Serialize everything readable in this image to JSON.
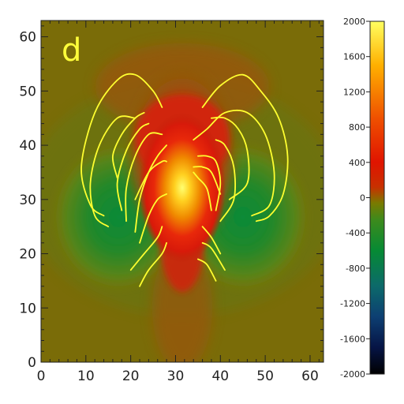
{
  "chart_data": {
    "type": "heatmap",
    "panel_label": "d",
    "title": "",
    "xlabel": "",
    "ylabel": "",
    "xlim": [
      0,
      63
    ],
    "ylim": [
      0,
      63
    ],
    "x_ticks": [
      0,
      10,
      20,
      30,
      40,
      50,
      60
    ],
    "y_ticks": [
      0,
      10,
      20,
      30,
      40,
      50,
      60
    ],
    "colorbar": {
      "min": -2000,
      "max": 2000,
      "ticks": [
        -2000,
        -1600,
        -1200,
        -800,
        -400,
        0,
        400,
        800,
        1200,
        1600,
        2000
      ],
      "stops": [
        {
          "value": -2000,
          "color": "#000000"
        },
        {
          "value": -1700,
          "color": "#061445"
        },
        {
          "value": -1350,
          "color": "#0d3f72"
        },
        {
          "value": -1000,
          "color": "#0c6a6a"
        },
        {
          "value": -600,
          "color": "#068a34"
        },
        {
          "value": -250,
          "color": "#3d8a1c"
        },
        {
          "value": -60,
          "color": "#7a7a00"
        },
        {
          "value": 120,
          "color": "#c83000"
        },
        {
          "value": 400,
          "color": "#e01400"
        },
        {
          "value": 900,
          "color": "#ef5000"
        },
        {
          "value": 1500,
          "color": "#ffb000"
        },
        {
          "value": 2000,
          "color": "#ffff60"
        }
      ]
    },
    "field_description": "Bz map with strong positive kernel at ~(31,31) extending downward, negative lobes at ~(16,30) and ~(45,30)",
    "field_peak_positive": 1900,
    "field_peak_negative": -600,
    "field_lines": [
      {
        "name": "line-l1",
        "points": [
          [
            14,
            27
          ],
          [
            11,
            29
          ],
          [
            9,
            36
          ],
          [
            12,
            46
          ],
          [
            17,
            52
          ],
          [
            21,
            53
          ],
          [
            25,
            50
          ],
          [
            27,
            47
          ]
        ]
      },
      {
        "name": "line-l2",
        "points": [
          [
            15,
            25
          ],
          [
            12,
            27
          ],
          [
            11,
            33
          ],
          [
            13,
            40
          ],
          [
            17,
            45
          ],
          [
            21,
            45
          ]
        ]
      },
      {
        "name": "line-l3",
        "points": [
          [
            17,
            34
          ],
          [
            16,
            38
          ],
          [
            18,
            42
          ],
          [
            21,
            45
          ],
          [
            23,
            46
          ]
        ]
      },
      {
        "name": "line-l4",
        "points": [
          [
            18,
            28
          ],
          [
            17,
            33
          ],
          [
            19,
            39
          ],
          [
            22,
            43
          ],
          [
            24,
            44
          ]
        ]
      },
      {
        "name": "line-l5",
        "points": [
          [
            19,
            26
          ],
          [
            19,
            32
          ],
          [
            21,
            38
          ],
          [
            24,
            42
          ],
          [
            27,
            42
          ]
        ]
      },
      {
        "name": "line-l6",
        "points": [
          [
            21,
            24
          ],
          [
            22,
            30
          ],
          [
            24,
            35
          ],
          [
            26,
            38
          ],
          [
            28,
            40
          ]
        ]
      },
      {
        "name": "line-l7",
        "points": [
          [
            21,
            30
          ],
          [
            24,
            35
          ],
          [
            27,
            37
          ],
          [
            28,
            37
          ]
        ]
      },
      {
        "name": "line-l8",
        "points": [
          [
            22,
            22
          ],
          [
            24,
            27
          ],
          [
            26,
            30
          ],
          [
            28,
            31
          ]
        ]
      },
      {
        "name": "line-l9",
        "points": [
          [
            20,
            17
          ],
          [
            23,
            20
          ],
          [
            26,
            23
          ],
          [
            27,
            25
          ]
        ]
      },
      {
        "name": "line-l10",
        "points": [
          [
            22,
            14
          ],
          [
            24,
            17
          ],
          [
            27,
            20
          ],
          [
            28,
            22
          ]
        ]
      },
      {
        "name": "line-r1",
        "points": [
          [
            48,
            26
          ],
          [
            51,
            27
          ],
          [
            54,
            31
          ],
          [
            55,
            38
          ],
          [
            53,
            45
          ],
          [
            49,
            50
          ],
          [
            45,
            53
          ],
          [
            40,
            51
          ],
          [
            36,
            47
          ]
        ]
      },
      {
        "name": "line-r2",
        "points": [
          [
            47,
            27
          ],
          [
            51,
            29
          ],
          [
            52,
            35
          ],
          [
            50,
            42
          ],
          [
            46,
            46
          ],
          [
            41,
            46
          ],
          [
            37,
            43
          ],
          [
            34,
            41
          ]
        ]
      },
      {
        "name": "line-r3",
        "points": [
          [
            42,
            30
          ],
          [
            46,
            33
          ],
          [
            46,
            39
          ],
          [
            44,
            43
          ],
          [
            41,
            45
          ],
          [
            38,
            45
          ]
        ]
      },
      {
        "name": "line-r4",
        "points": [
          [
            40,
            26
          ],
          [
            43,
            30
          ],
          [
            43,
            36
          ],
          [
            41,
            40
          ],
          [
            39,
            41
          ]
        ]
      },
      {
        "name": "line-r5",
        "points": [
          [
            39,
            28
          ],
          [
            40,
            33
          ],
          [
            39,
            37
          ],
          [
            37,
            38
          ],
          [
            35,
            38
          ]
        ]
      },
      {
        "name": "line-r6",
        "points": [
          [
            40,
            31
          ],
          [
            38,
            35
          ],
          [
            36,
            36
          ],
          [
            34,
            36
          ]
        ]
      },
      {
        "name": "line-r7",
        "points": [
          [
            38,
            28
          ],
          [
            37,
            32
          ],
          [
            35,
            34
          ],
          [
            34,
            35
          ]
        ]
      },
      {
        "name": "line-r8",
        "points": [
          [
            40,
            20
          ],
          [
            38,
            23
          ],
          [
            36,
            25
          ]
        ]
      },
      {
        "name": "line-r9",
        "points": [
          [
            41,
            17
          ],
          [
            38,
            21
          ],
          [
            36,
            22
          ]
        ]
      },
      {
        "name": "line-r10",
        "points": [
          [
            39,
            15
          ],
          [
            37,
            18
          ],
          [
            35,
            19
          ]
        ]
      }
    ]
  }
}
